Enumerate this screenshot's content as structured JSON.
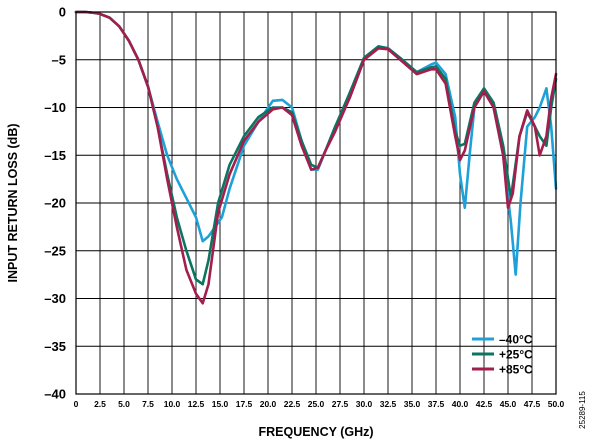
{
  "chart_data": {
    "type": "line",
    "title": "",
    "xlabel": "FREQUENCY (GHz)",
    "ylabel": "INPUT RETURN LOSS (dB)",
    "xlim": [
      0,
      50
    ],
    "ylim": [
      -40,
      0
    ],
    "x_ticks": [
      "0",
      "2.5",
      "5.0",
      "7.5",
      "10.0",
      "12.5",
      "15.0",
      "17.5",
      "20.0",
      "22.5",
      "25.0",
      "27.5",
      "30.0",
      "32.5",
      "35.0",
      "37.5",
      "40.0",
      "42.5",
      "45.0",
      "47.5",
      "50.0"
    ],
    "y_ticks": [
      "0",
      "–5",
      "–10",
      "–15",
      "–20",
      "–25",
      "–30",
      "–35",
      "–40"
    ],
    "grid": true,
    "legend_position": "bottom-right",
    "figure_id": "25289-115",
    "series": [
      {
        "name": "–40°C",
        "color": "#1ea0d8",
        "points": [
          [
            0,
            0
          ],
          [
            1,
            0
          ],
          [
            2,
            -0.1
          ],
          [
            2.5,
            -0.2
          ],
          [
            3.5,
            -0.6
          ],
          [
            4.5,
            -1.5
          ],
          [
            5.5,
            -3
          ],
          [
            6.5,
            -5
          ],
          [
            7.5,
            -7.8
          ],
          [
            8.5,
            -11.5
          ],
          [
            9.5,
            -15
          ],
          [
            10.5,
            -17.5
          ],
          [
            11.5,
            -19.5
          ],
          [
            12.5,
            -21.5
          ],
          [
            13.2,
            -24
          ],
          [
            13.8,
            -23.5
          ],
          [
            14.5,
            -22.5
          ],
          [
            15.2,
            -21.5
          ],
          [
            16,
            -18.5
          ],
          [
            17.5,
            -14
          ],
          [
            19,
            -11.5
          ],
          [
            20.5,
            -9.3
          ],
          [
            21.5,
            -9.2
          ],
          [
            22.5,
            -10
          ],
          [
            23.5,
            -13.5
          ],
          [
            24.5,
            -16.5
          ],
          [
            25.2,
            -16.5
          ],
          [
            26,
            -14.5
          ],
          [
            27,
            -12
          ],
          [
            28.5,
            -9
          ],
          [
            30,
            -5
          ],
          [
            31.5,
            -3.6
          ],
          [
            32.5,
            -3.8
          ],
          [
            34,
            -5
          ],
          [
            35.5,
            -6.3
          ],
          [
            37,
            -5.5
          ],
          [
            37.5,
            -5.3
          ],
          [
            38.5,
            -6.5
          ],
          [
            39.5,
            -11
          ],
          [
            40,
            -17
          ],
          [
            40.5,
            -20.5
          ],
          [
            41,
            -15
          ],
          [
            41.5,
            -10
          ],
          [
            42.5,
            -8
          ],
          [
            43.5,
            -10
          ],
          [
            44.5,
            -15
          ],
          [
            45.3,
            -22
          ],
          [
            45.8,
            -27.5
          ],
          [
            46.3,
            -20
          ],
          [
            47,
            -12
          ],
          [
            47.8,
            -11
          ],
          [
            48.3,
            -10
          ],
          [
            49,
            -8
          ],
          [
            49.5,
            -12
          ],
          [
            50,
            -18.5
          ]
        ]
      },
      {
        "name": "+25°C",
        "color": "#0a7560",
        "points": [
          [
            0,
            0
          ],
          [
            1,
            0
          ],
          [
            2,
            -0.1
          ],
          [
            2.5,
            -0.2
          ],
          [
            3.5,
            -0.6
          ],
          [
            4.5,
            -1.5
          ],
          [
            5.5,
            -3
          ],
          [
            6.5,
            -5
          ],
          [
            7.5,
            -7.8
          ],
          [
            8.5,
            -12
          ],
          [
            9.5,
            -17
          ],
          [
            10.5,
            -21.5
          ],
          [
            11.5,
            -25
          ],
          [
            12.5,
            -28
          ],
          [
            13.2,
            -28.5
          ],
          [
            13.8,
            -26
          ],
          [
            14.8,
            -20
          ],
          [
            16,
            -16
          ],
          [
            17.5,
            -13
          ],
          [
            19,
            -11
          ],
          [
            20.5,
            -10
          ],
          [
            21.5,
            -10
          ],
          [
            22.5,
            -10.5
          ],
          [
            23.5,
            -13.5
          ],
          [
            24.5,
            -16
          ],
          [
            25.2,
            -16.3
          ],
          [
            26,
            -14.5
          ],
          [
            27,
            -12
          ],
          [
            28.5,
            -8.5
          ],
          [
            30,
            -4.8
          ],
          [
            31.5,
            -3.6
          ],
          [
            32.5,
            -3.8
          ],
          [
            34,
            -5
          ],
          [
            35.5,
            -6.3
          ],
          [
            37,
            -5.8
          ],
          [
            37.5,
            -5.7
          ],
          [
            38.5,
            -7
          ],
          [
            39.5,
            -12.5
          ],
          [
            40,
            -14
          ],
          [
            40.5,
            -13.8
          ],
          [
            41.5,
            -9.5
          ],
          [
            42.5,
            -8
          ],
          [
            43.5,
            -9.5
          ],
          [
            44.5,
            -14
          ],
          [
            45.3,
            -19.5
          ],
          [
            46.2,
            -13
          ],
          [
            47,
            -10.5
          ],
          [
            47.8,
            -12
          ],
          [
            48.3,
            -13
          ],
          [
            49,
            -14
          ],
          [
            49.5,
            -10
          ],
          [
            50,
            -7
          ]
        ]
      },
      {
        "name": "+85°C",
        "color": "#a41e4d",
        "points": [
          [
            0,
            0
          ],
          [
            1,
            0
          ],
          [
            2,
            -0.1
          ],
          [
            2.5,
            -0.2
          ],
          [
            3.5,
            -0.6
          ],
          [
            4.5,
            -1.5
          ],
          [
            5.5,
            -3
          ],
          [
            6.5,
            -5
          ],
          [
            7.5,
            -7.8
          ],
          [
            8.5,
            -12
          ],
          [
            9.5,
            -17.5
          ],
          [
            10.5,
            -22.5
          ],
          [
            11.5,
            -27
          ],
          [
            12.5,
            -29.5
          ],
          [
            13.2,
            -30.5
          ],
          [
            13.8,
            -28.5
          ],
          [
            14.8,
            -21
          ],
          [
            16,
            -17
          ],
          [
            17.5,
            -13.5
          ],
          [
            19,
            -11.5
          ],
          [
            20.5,
            -10.2
          ],
          [
            21.5,
            -10
          ],
          [
            22.5,
            -10.8
          ],
          [
            23.5,
            -14
          ],
          [
            24.5,
            -16.5
          ],
          [
            25.2,
            -16.3
          ],
          [
            26,
            -14.5
          ],
          [
            27,
            -12.5
          ],
          [
            28.5,
            -9
          ],
          [
            30,
            -5
          ],
          [
            31.5,
            -3.8
          ],
          [
            32.5,
            -3.9
          ],
          [
            34,
            -5.2
          ],
          [
            35.5,
            -6.5
          ],
          [
            37,
            -6
          ],
          [
            37.5,
            -6
          ],
          [
            38.5,
            -7.5
          ],
          [
            39.5,
            -13
          ],
          [
            40,
            -15.5
          ],
          [
            40.5,
            -14.5
          ],
          [
            41.5,
            -10
          ],
          [
            42.5,
            -8.3
          ],
          [
            43.5,
            -10
          ],
          [
            44.5,
            -15
          ],
          [
            45,
            -20.5
          ],
          [
            45.5,
            -19
          ],
          [
            46.2,
            -13
          ],
          [
            47,
            -10.3
          ],
          [
            47.8,
            -12
          ],
          [
            48.3,
            -15
          ],
          [
            49,
            -13
          ],
          [
            49.5,
            -9
          ],
          [
            50,
            -6.5
          ]
        ]
      }
    ]
  }
}
